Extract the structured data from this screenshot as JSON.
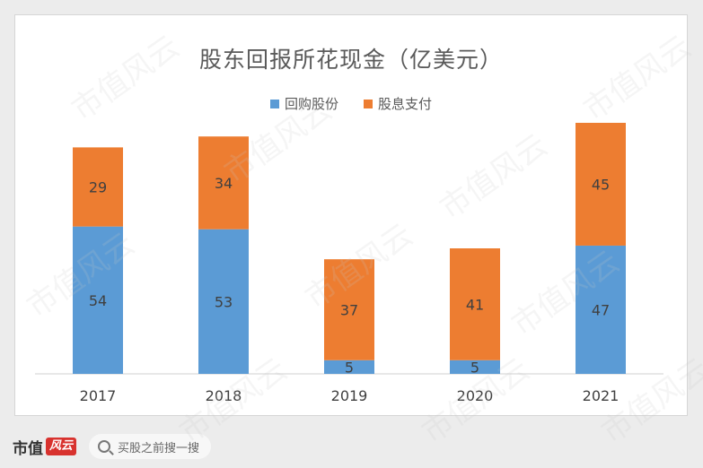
{
  "watermark": "市值风云",
  "colors": {
    "buyback": "#5b9bd5",
    "dividend": "#ed7d31"
  },
  "chart_data": {
    "type": "bar",
    "stacked": true,
    "title": "股东回报所花现金（亿美元）",
    "categories": [
      "2017",
      "2018",
      "2019",
      "2020",
      "2021"
    ],
    "series": [
      {
        "name": "回购股份",
        "values": [
          54,
          53,
          5,
          5,
          47
        ]
      },
      {
        "name": "股息支付",
        "values": [
          29,
          34,
          37,
          41,
          45
        ]
      }
    ],
    "ylim": [
      0,
      92
    ],
    "grid": false,
    "legend": "top-center"
  },
  "footer": {
    "brand": "市值",
    "brand_mark": "风云",
    "search_placeholder": "买股之前搜一搜"
  }
}
